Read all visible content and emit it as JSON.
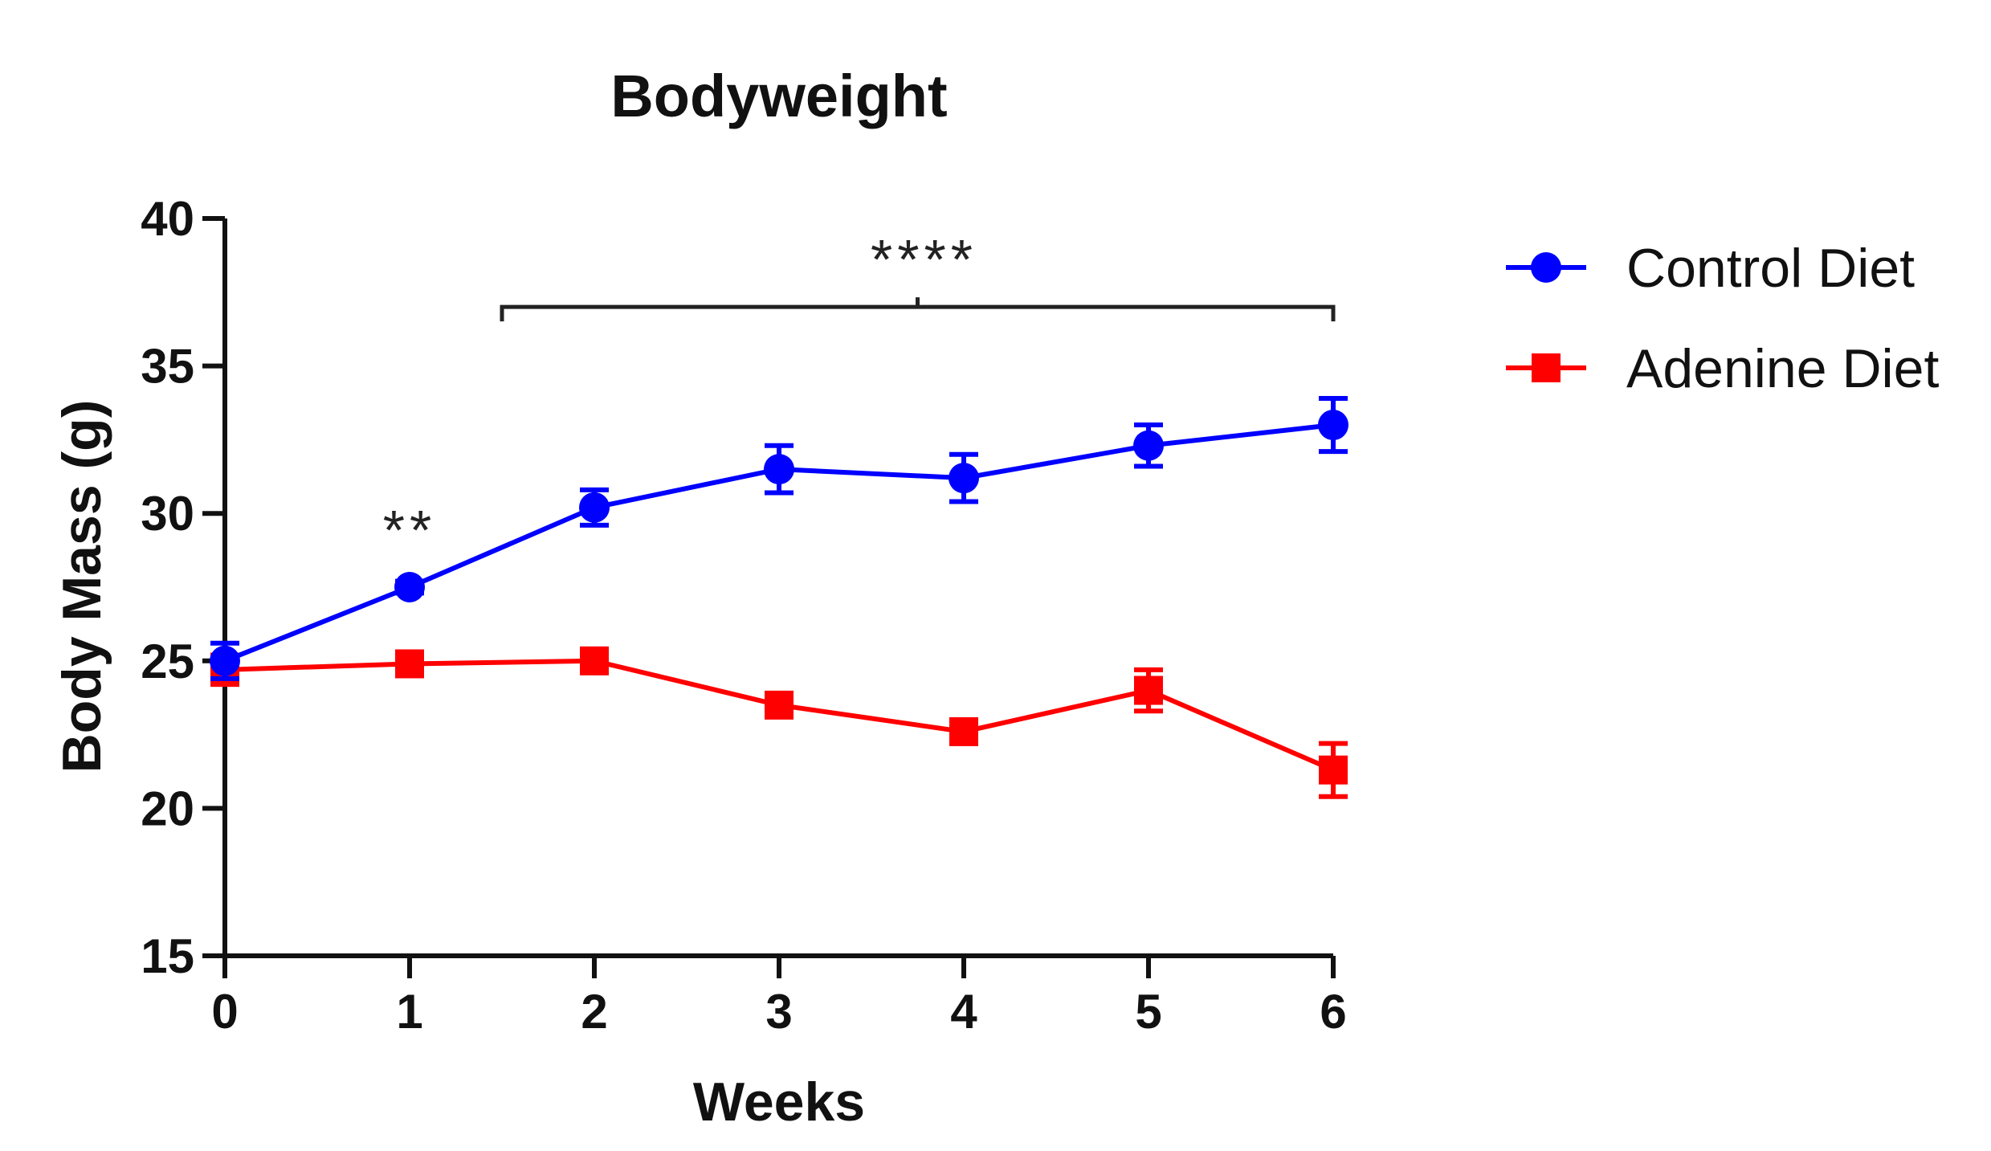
{
  "chart_data": {
    "type": "line",
    "title": "Bodyweight",
    "xlabel": "Weeks",
    "ylabel": "Body Mass (g)",
    "x": [
      0,
      1,
      2,
      3,
      4,
      5,
      6
    ],
    "x_ticks": [
      "0",
      "1",
      "2",
      "3",
      "4",
      "5",
      "6"
    ],
    "ylim": [
      15,
      40
    ],
    "y_ticks": [
      "15",
      "20",
      "25",
      "30",
      "35",
      "40"
    ],
    "legend_position": "top-right",
    "grid": false,
    "series": [
      {
        "name": "Control Diet",
        "color": "#0000ff",
        "marker": "circle",
        "values": [
          25.0,
          27.5,
          30.2,
          31.5,
          31.2,
          32.3,
          33.0
        ],
        "errors": [
          0.6,
          0.2,
          0.6,
          0.8,
          0.8,
          0.7,
          0.9
        ]
      },
      {
        "name": "Adenine Diet",
        "color": "#ff0000",
        "marker": "square",
        "values": [
          24.7,
          24.9,
          25.0,
          23.5,
          22.6,
          24.0,
          21.3
        ],
        "errors": [
          0.5,
          0.2,
          0.2,
          0.3,
          0.3,
          0.7,
          0.9
        ]
      }
    ],
    "annotations": [
      {
        "text": "**",
        "x": 1,
        "y": 30.0
      },
      {
        "text": "****",
        "bracket_x": [
          1.5,
          6
        ],
        "bracket_y": 37.0
      }
    ]
  }
}
